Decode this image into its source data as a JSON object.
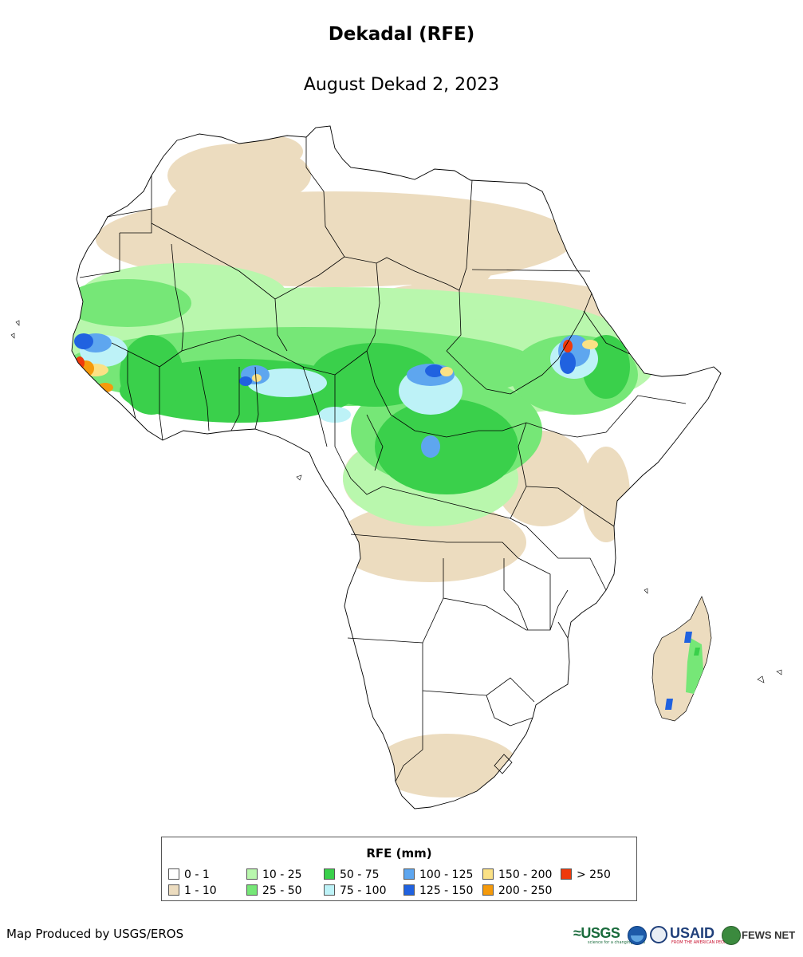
{
  "title": "Dekadal (RFE)",
  "subtitle": "August Dekad 2, 2023",
  "legend": {
    "title": "RFE (mm)",
    "classes": [
      {
        "label": "0 - 1",
        "color": "#ffffff"
      },
      {
        "label": "1 - 10",
        "color": "#ecdcbf"
      },
      {
        "label": "10 - 25",
        "color": "#b9f7ad"
      },
      {
        "label": "25 - 50",
        "color": "#76e777"
      },
      {
        "label": "50 - 75",
        "color": "#3ad04b"
      },
      {
        "label": "75 - 100",
        "color": "#bdf2f7"
      },
      {
        "label": "100 - 125",
        "color": "#5ea6ef"
      },
      {
        "label": "125 - 150",
        "color": "#2062e0"
      },
      {
        "label": "150 - 200",
        "color": "#fbe185"
      },
      {
        "label": "200 - 250",
        "color": "#f59a0b"
      },
      {
        "label": "> 250",
        "color": "#ef3a0c"
      }
    ]
  },
  "credit": "Map Produced by USGS/EROS",
  "logos": {
    "usgs": "≈USGS",
    "usgs_tagline": "science for a changing world",
    "usaid": "USAID",
    "usaid_tagline": "FROM THE AMERICAN PEOPLE",
    "fews": "FEWS NET",
    "noaa_icon": "noaa-logo-icon",
    "usaid_icon": "usaid-seal-icon",
    "fews_icon": "fews-globe-icon"
  }
}
